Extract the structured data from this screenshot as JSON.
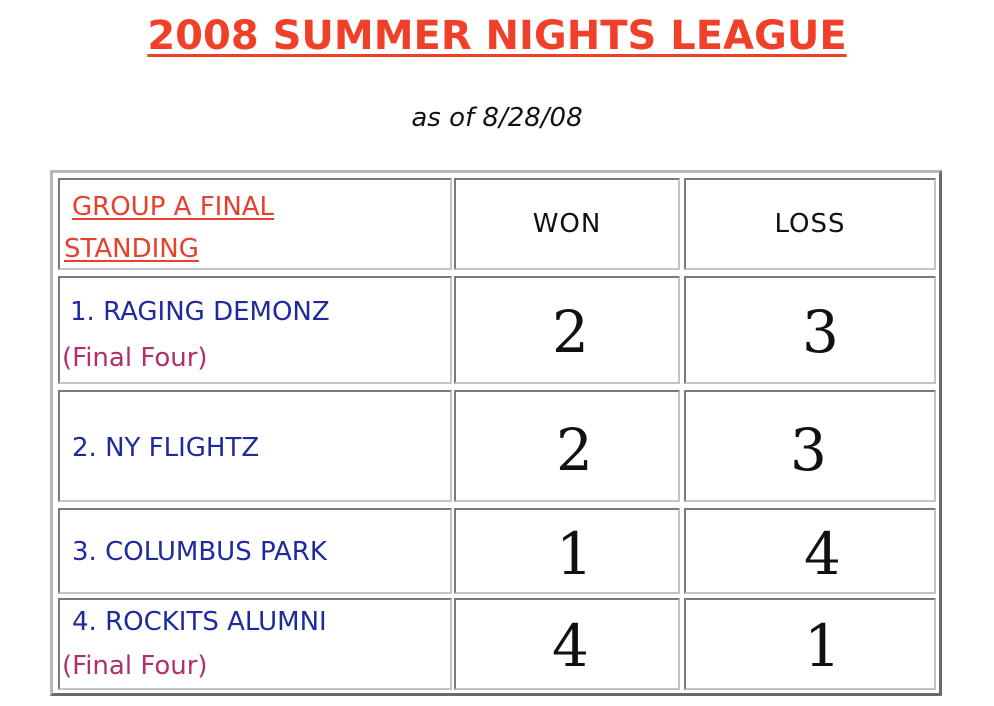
{
  "title": "2008 SUMMER NIGHTS LEAGUE",
  "subtitle": "as of 8/28/08",
  "table": {
    "header": {
      "group_label_line1": "GROUP A FINAL",
      "group_label_line2": "STANDING",
      "won": "WON",
      "loss": "LOSS"
    },
    "rows": [
      {
        "team": "1. RAGING DEMONZ",
        "note": "(Final Four)",
        "won": "2",
        "loss": "3"
      },
      {
        "team": "2. NY FLIGHTZ",
        "note": "",
        "won": "2",
        "loss": "3"
      },
      {
        "team": "3. COLUMBUS PARK",
        "note": "",
        "won": "1",
        "loss": "4"
      },
      {
        "team": "4. ROCKITS ALUMNI",
        "note": "(Final Four)",
        "won": "4",
        "loss": "1"
      }
    ]
  },
  "colors": {
    "title": "#f0402a",
    "header_label": "#e8402c",
    "team_name": "#1f2a9e",
    "final_four_note": "#b0306a"
  }
}
